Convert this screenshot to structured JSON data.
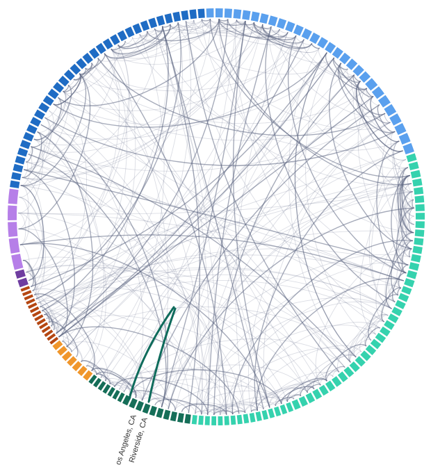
{
  "diagram": {
    "type": "hierarchical-edge-bundling",
    "labels": [
      {
        "text": "Los Angeles, CA",
        "highlighted": true
      },
      {
        "text": "Riverside, CA",
        "highlighted": true
      }
    ],
    "highlight_edge": [
      "Los Angeles, CA",
      "Riverside, CA"
    ],
    "colors": {
      "edge": "#5c6682",
      "highlight_edge": "#0e6b5b",
      "groups": [
        "#1f6cc4",
        "#5aa0ee",
        "#35d2ae",
        "#156e58",
        "#f0962b",
        "#b54712",
        "#6f3da0",
        "#b67fe8"
      ]
    }
  }
}
